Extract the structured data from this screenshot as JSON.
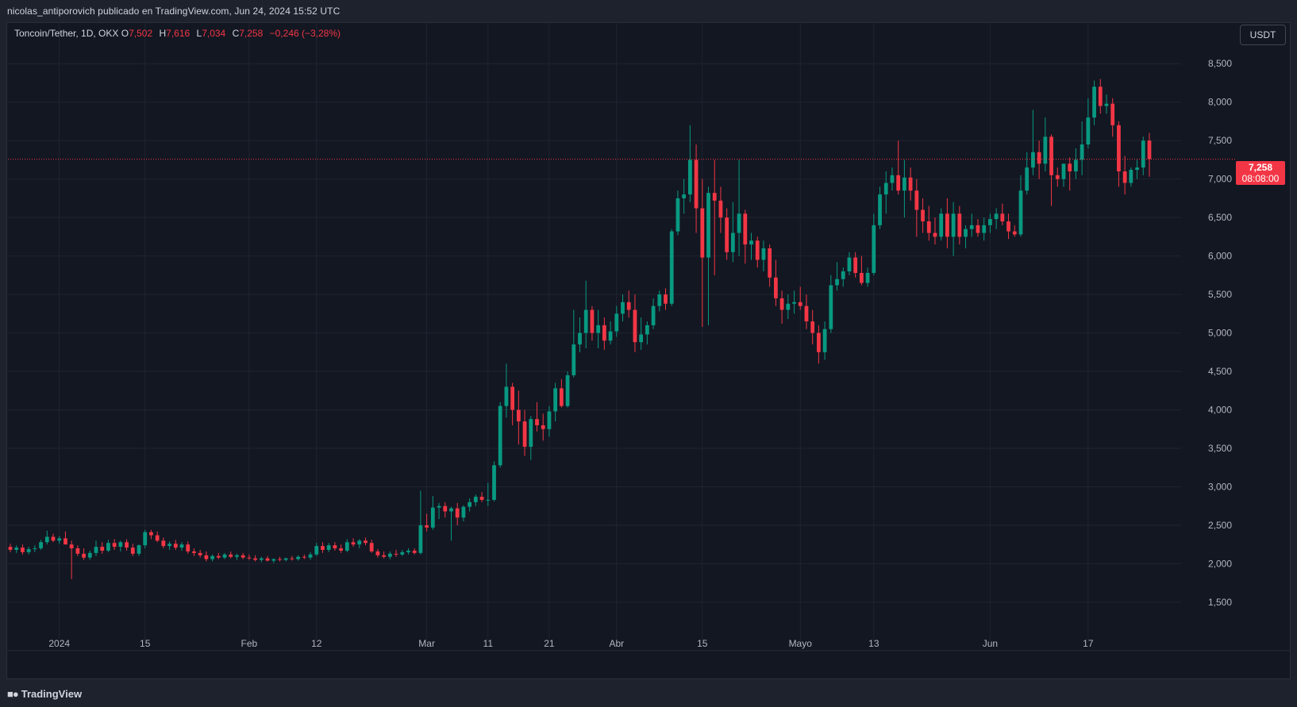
{
  "header": {
    "published_text": "nicolas_antiporovich publicado en TradingView.com, Jun 24, 2024 15:52 UTC"
  },
  "legend": {
    "symbol": "Toncoin/Tether, 1D, OKX",
    "open_label": "O",
    "open": "7,502",
    "high_label": "H",
    "high": "7,616",
    "low_label": "L",
    "low": "7,034",
    "close_label": "C",
    "close": "7,258",
    "change": "−0,246 (−3,28%)"
  },
  "currency_button": "USDT",
  "last_price": {
    "value": "7,258",
    "countdown": "08:08:00",
    "numeric": 7.258
  },
  "footer": {
    "brand": "TradingView",
    "icon": "tradingview-logo-icon"
  },
  "colors": {
    "up": "#089981",
    "down": "#f23645",
    "background": "#131722",
    "grid": "#1f2430"
  },
  "chart_data": {
    "type": "candlestick",
    "ylim": [
      1.2,
      8.75
    ],
    "y_ticks": [
      "1,500",
      "2,000",
      "2,500",
      "3,000",
      "3,500",
      "4,000",
      "4,500",
      "5,000",
      "5,500",
      "6,000",
      "6,500",
      "7,000",
      "7,500",
      "8,000",
      "8,500"
    ],
    "y_tick_values": [
      1.5,
      2.0,
      2.5,
      3.0,
      3.5,
      4.0,
      4.5,
      5.0,
      5.5,
      6.0,
      6.5,
      7.0,
      7.5,
      8.0,
      8.5
    ],
    "x_ticks": [
      {
        "label": "2024",
        "index": 8
      },
      {
        "label": "15",
        "index": 22
      },
      {
        "label": "Feb",
        "index": 39
      },
      {
        "label": "12",
        "index": 50
      },
      {
        "label": "Mar",
        "index": 68
      },
      {
        "label": "11",
        "index": 78
      },
      {
        "label": "21",
        "index": 88
      },
      {
        "label": "Abr",
        "index": 99
      },
      {
        "label": "15",
        "index": 113
      },
      {
        "label": "Mayo",
        "index": 129
      },
      {
        "label": "13",
        "index": 141
      },
      {
        "label": "Jun",
        "index": 160
      },
      {
        "label": "17",
        "index": 176
      }
    ],
    "ohlc": [
      [
        2.22,
        2.26,
        2.15,
        2.18
      ],
      [
        2.18,
        2.24,
        2.14,
        2.21
      ],
      [
        2.21,
        2.25,
        2.12,
        2.15
      ],
      [
        2.15,
        2.22,
        2.12,
        2.19
      ],
      [
        2.19,
        2.24,
        2.15,
        2.2
      ],
      [
        2.2,
        2.31,
        2.18,
        2.28
      ],
      [
        2.28,
        2.43,
        2.25,
        2.35
      ],
      [
        2.35,
        2.39,
        2.28,
        2.3
      ],
      [
        2.3,
        2.36,
        2.26,
        2.33
      ],
      [
        2.33,
        2.42,
        2.28,
        2.25
      ],
      [
        2.25,
        2.3,
        1.8,
        2.2
      ],
      [
        2.2,
        2.24,
        2.1,
        2.13
      ],
      [
        2.13,
        2.2,
        2.05,
        2.08
      ],
      [
        2.08,
        2.17,
        2.05,
        2.14
      ],
      [
        2.14,
        2.3,
        2.1,
        2.22
      ],
      [
        2.22,
        2.28,
        2.13,
        2.17
      ],
      [
        2.17,
        2.31,
        2.15,
        2.27
      ],
      [
        2.27,
        2.32,
        2.18,
        2.22
      ],
      [
        2.22,
        2.3,
        2.16,
        2.28
      ],
      [
        2.28,
        2.32,
        2.17,
        2.21
      ],
      [
        2.21,
        2.26,
        2.1,
        2.13
      ],
      [
        2.13,
        2.25,
        2.1,
        2.24
      ],
      [
        2.24,
        2.44,
        2.2,
        2.41
      ],
      [
        2.41,
        2.44,
        2.32,
        2.37
      ],
      [
        2.37,
        2.42,
        2.28,
        2.3
      ],
      [
        2.3,
        2.34,
        2.2,
        2.23
      ],
      [
        2.23,
        2.29,
        2.18,
        2.26
      ],
      [
        2.26,
        2.31,
        2.18,
        2.21
      ],
      [
        2.21,
        2.28,
        2.17,
        2.25
      ],
      [
        2.25,
        2.29,
        2.13,
        2.16
      ],
      [
        2.16,
        2.2,
        2.1,
        2.14
      ],
      [
        2.14,
        2.18,
        2.08,
        2.11
      ],
      [
        2.11,
        2.16,
        2.03,
        2.06
      ],
      [
        2.06,
        2.12,
        2.03,
        2.1
      ],
      [
        2.1,
        2.14,
        2.06,
        2.08
      ],
      [
        2.08,
        2.14,
        2.06,
        2.12
      ],
      [
        2.12,
        2.16,
        2.07,
        2.09
      ],
      [
        2.09,
        2.13,
        2.05,
        2.11
      ],
      [
        2.11,
        2.14,
        2.06,
        2.08
      ],
      [
        2.08,
        2.12,
        2.05,
        2.07
      ],
      [
        2.07,
        2.11,
        2.03,
        2.05
      ],
      [
        2.05,
        2.09,
        2.02,
        2.07
      ],
      [
        2.07,
        2.1,
        2.03,
        2.04
      ],
      [
        2.04,
        2.07,
        2.01,
        2.06
      ],
      [
        2.06,
        2.09,
        2.03,
        2.05
      ],
      [
        2.05,
        2.08,
        2.03,
        2.07
      ],
      [
        2.07,
        2.1,
        2.04,
        2.06
      ],
      [
        2.06,
        2.11,
        2.04,
        2.09
      ],
      [
        2.09,
        2.12,
        2.06,
        2.08
      ],
      [
        2.08,
        2.15,
        2.05,
        2.12
      ],
      [
        2.12,
        2.27,
        2.1,
        2.23
      ],
      [
        2.23,
        2.28,
        2.14,
        2.18
      ],
      [
        2.18,
        2.27,
        2.15,
        2.24
      ],
      [
        2.24,
        2.28,
        2.17,
        2.2
      ],
      [
        2.2,
        2.25,
        2.14,
        2.17
      ],
      [
        2.17,
        2.32,
        2.15,
        2.28
      ],
      [
        2.28,
        2.33,
        2.22,
        2.25
      ],
      [
        2.25,
        2.32,
        2.2,
        2.3
      ],
      [
        2.3,
        2.34,
        2.24,
        2.27
      ],
      [
        2.27,
        2.31,
        2.14,
        2.16
      ],
      [
        2.16,
        2.19,
        2.08,
        2.11
      ],
      [
        2.11,
        2.16,
        2.07,
        2.09
      ],
      [
        2.09,
        2.16,
        2.06,
        2.13
      ],
      [
        2.13,
        2.18,
        2.09,
        2.12
      ],
      [
        2.12,
        2.18,
        2.1,
        2.15
      ],
      [
        2.15,
        2.2,
        2.12,
        2.17
      ],
      [
        2.17,
        2.2,
        2.12,
        2.14
      ],
      [
        2.14,
        2.95,
        2.12,
        2.5
      ],
      [
        2.5,
        2.65,
        2.42,
        2.47
      ],
      [
        2.47,
        2.88,
        2.44,
        2.73
      ],
      [
        2.73,
        2.79,
        2.58,
        2.75
      ],
      [
        2.75,
        2.8,
        2.6,
        2.68
      ],
      [
        2.68,
        2.74,
        2.3,
        2.72
      ],
      [
        2.72,
        2.79,
        2.5,
        2.6
      ],
      [
        2.6,
        2.76,
        2.55,
        2.74
      ],
      [
        2.74,
        2.85,
        2.68,
        2.8
      ],
      [
        2.8,
        2.9,
        2.75,
        2.87
      ],
      [
        2.87,
        2.93,
        2.8,
        2.83
      ],
      [
        2.83,
        3.05,
        2.75,
        2.83
      ],
      [
        2.83,
        3.33,
        2.81,
        3.28
      ],
      [
        3.28,
        4.1,
        3.25,
        4.05
      ],
      [
        4.05,
        4.6,
        3.9,
        4.3
      ],
      [
        4.3,
        4.35,
        3.8,
        4.0
      ],
      [
        4.0,
        4.25,
        3.55,
        3.85
      ],
      [
        3.85,
        4.0,
        3.4,
        3.52
      ],
      [
        3.52,
        3.92,
        3.35,
        3.88
      ],
      [
        3.88,
        4.1,
        3.72,
        3.8
      ],
      [
        3.8,
        3.95,
        3.6,
        3.75
      ],
      [
        3.75,
        4.05,
        3.65,
        3.98
      ],
      [
        3.98,
        4.35,
        3.85,
        4.28
      ],
      [
        4.28,
        4.4,
        4.03,
        4.05
      ],
      [
        4.05,
        4.5,
        4.03,
        4.45
      ],
      [
        4.45,
        5.3,
        4.42,
        4.85
      ],
      [
        4.85,
        5.2,
        4.75,
        5.0
      ],
      [
        5.0,
        5.68,
        4.8,
        5.3
      ],
      [
        5.3,
        5.35,
        4.9,
        5.0
      ],
      [
        5.0,
        5.3,
        4.8,
        5.1
      ],
      [
        5.1,
        5.2,
        4.78,
        4.9
      ],
      [
        4.9,
        5.15,
        4.85,
        5.02
      ],
      [
        5.02,
        5.35,
        4.95,
        5.25
      ],
      [
        5.25,
        5.5,
        5.15,
        5.4
      ],
      [
        5.4,
        5.55,
        5.2,
        5.3
      ],
      [
        5.3,
        5.5,
        4.75,
        4.88
      ],
      [
        4.88,
        5.2,
        4.78,
        4.98
      ],
      [
        4.98,
        5.15,
        4.85,
        5.1
      ],
      [
        5.1,
        5.45,
        5.05,
        5.35
      ],
      [
        5.35,
        5.55,
        5.28,
        5.5
      ],
      [
        5.5,
        5.58,
        5.3,
        5.38
      ],
      [
        5.38,
        6.35,
        5.35,
        6.32
      ],
      [
        6.32,
        6.85,
        6.27,
        6.75
      ],
      [
        6.75,
        7.0,
        6.55,
        6.8
      ],
      [
        6.8,
        7.7,
        6.7,
        7.25
      ],
      [
        7.25,
        7.45,
        6.3,
        6.62
      ],
      [
        6.62,
        7.0,
        5.08,
        5.98
      ],
      [
        5.98,
        6.9,
        5.1,
        6.82
      ],
      [
        6.82,
        7.25,
        5.75,
        6.72
      ],
      [
        6.72,
        6.9,
        6.3,
        6.5
      ],
      [
        6.5,
        6.62,
        5.95,
        6.05
      ],
      [
        6.05,
        6.7,
        5.92,
        6.3
      ],
      [
        6.3,
        7.25,
        6.0,
        6.55
      ],
      [
        6.55,
        6.6,
        5.9,
        6.15
      ],
      [
        6.15,
        6.3,
        5.95,
        6.2
      ],
      [
        6.2,
        6.25,
        5.85,
        5.95
      ],
      [
        5.95,
        6.2,
        5.8,
        6.1
      ],
      [
        6.1,
        6.15,
        5.6,
        5.72
      ],
      [
        5.72,
        5.95,
        5.35,
        5.45
      ],
      [
        5.45,
        5.55,
        5.12,
        5.3
      ],
      [
        5.3,
        5.5,
        5.18,
        5.38
      ],
      [
        5.38,
        5.55,
        5.25,
        5.4
      ],
      [
        5.4,
        5.6,
        5.3,
        5.35
      ],
      [
        5.35,
        5.5,
        5.05,
        5.15
      ],
      [
        5.15,
        5.3,
        4.85,
        5.0
      ],
      [
        5.0,
        5.1,
        4.6,
        4.75
      ],
      [
        4.75,
        5.15,
        4.65,
        5.05
      ],
      [
        5.05,
        5.75,
        5.0,
        5.62
      ],
      [
        5.62,
        5.92,
        5.55,
        5.7
      ],
      [
        5.7,
        5.85,
        5.6,
        5.8
      ],
      [
        5.8,
        6.05,
        5.75,
        5.98
      ],
      [
        5.98,
        6.05,
        5.72,
        5.78
      ],
      [
        5.78,
        6.0,
        5.62,
        5.65
      ],
      [
        5.65,
        5.85,
        5.6,
        5.78
      ],
      [
        5.78,
        6.55,
        5.75,
        6.4
      ],
      [
        6.4,
        6.9,
        6.35,
        6.8
      ],
      [
        6.8,
        7.1,
        6.55,
        6.95
      ],
      [
        6.95,
        7.15,
        6.85,
        7.05
      ],
      [
        7.05,
        7.5,
        6.8,
        6.85
      ],
      [
        6.85,
        7.25,
        6.5,
        7.02
      ],
      [
        7.02,
        7.15,
        6.72,
        6.85
      ],
      [
        6.85,
        7.0,
        6.25,
        6.6
      ],
      [
        6.6,
        6.75,
        6.3,
        6.45
      ],
      [
        6.45,
        6.65,
        6.2,
        6.3
      ],
      [
        6.3,
        6.5,
        6.15,
        6.25
      ],
      [
        6.25,
        6.62,
        6.2,
        6.55
      ],
      [
        6.55,
        6.75,
        6.1,
        6.25
      ],
      [
        6.25,
        6.7,
        6.0,
        6.55
      ],
      [
        6.55,
        6.65,
        6.15,
        6.25
      ],
      [
        6.25,
        6.4,
        6.1,
        6.35
      ],
      [
        6.35,
        6.55,
        6.25,
        6.4
      ],
      [
        6.4,
        6.48,
        6.25,
        6.3
      ],
      [
        6.3,
        6.5,
        6.2,
        6.4
      ],
      [
        6.4,
        6.55,
        6.3,
        6.48
      ],
      [
        6.48,
        6.62,
        6.35,
        6.55
      ],
      [
        6.55,
        6.68,
        6.4,
        6.45
      ],
      [
        6.45,
        6.55,
        6.22,
        6.32
      ],
      [
        6.32,
        6.4,
        6.25,
        6.28
      ],
      [
        6.28,
        7.05,
        6.25,
        6.85
      ],
      [
        6.85,
        7.35,
        6.8,
        7.15
      ],
      [
        7.15,
        7.9,
        7.05,
        7.35
      ],
      [
        7.35,
        7.5,
        7.0,
        7.2
      ],
      [
        7.2,
        7.8,
        7.1,
        7.55
      ],
      [
        7.55,
        7.58,
        6.65,
        7.05
      ],
      [
        7.05,
        7.15,
        6.9,
        7.0
      ],
      [
        7.0,
        7.2,
        6.9,
        7.2
      ],
      [
        7.2,
        7.28,
        6.85,
        7.1
      ],
      [
        7.1,
        7.4,
        7.0,
        7.25
      ],
      [
        7.25,
        7.75,
        7.05,
        7.45
      ],
      [
        7.45,
        8.05,
        7.4,
        7.8
      ],
      [
        7.8,
        8.28,
        7.7,
        8.2
      ],
      [
        8.2,
        8.3,
        7.85,
        7.95
      ],
      [
        7.95,
        8.1,
        7.85,
        7.98
      ],
      [
        7.98,
        8.05,
        7.55,
        7.7
      ],
      [
        7.7,
        7.75,
        6.9,
        7.1
      ],
      [
        7.1,
        7.3,
        6.8,
        6.95
      ],
      [
        6.95,
        7.15,
        6.9,
        7.12
      ],
      [
        7.12,
        7.25,
        7.0,
        7.15
      ],
      [
        7.15,
        7.55,
        7.05,
        7.5
      ],
      [
        7.5,
        7.6,
        7.03,
        7.26
      ]
    ]
  }
}
